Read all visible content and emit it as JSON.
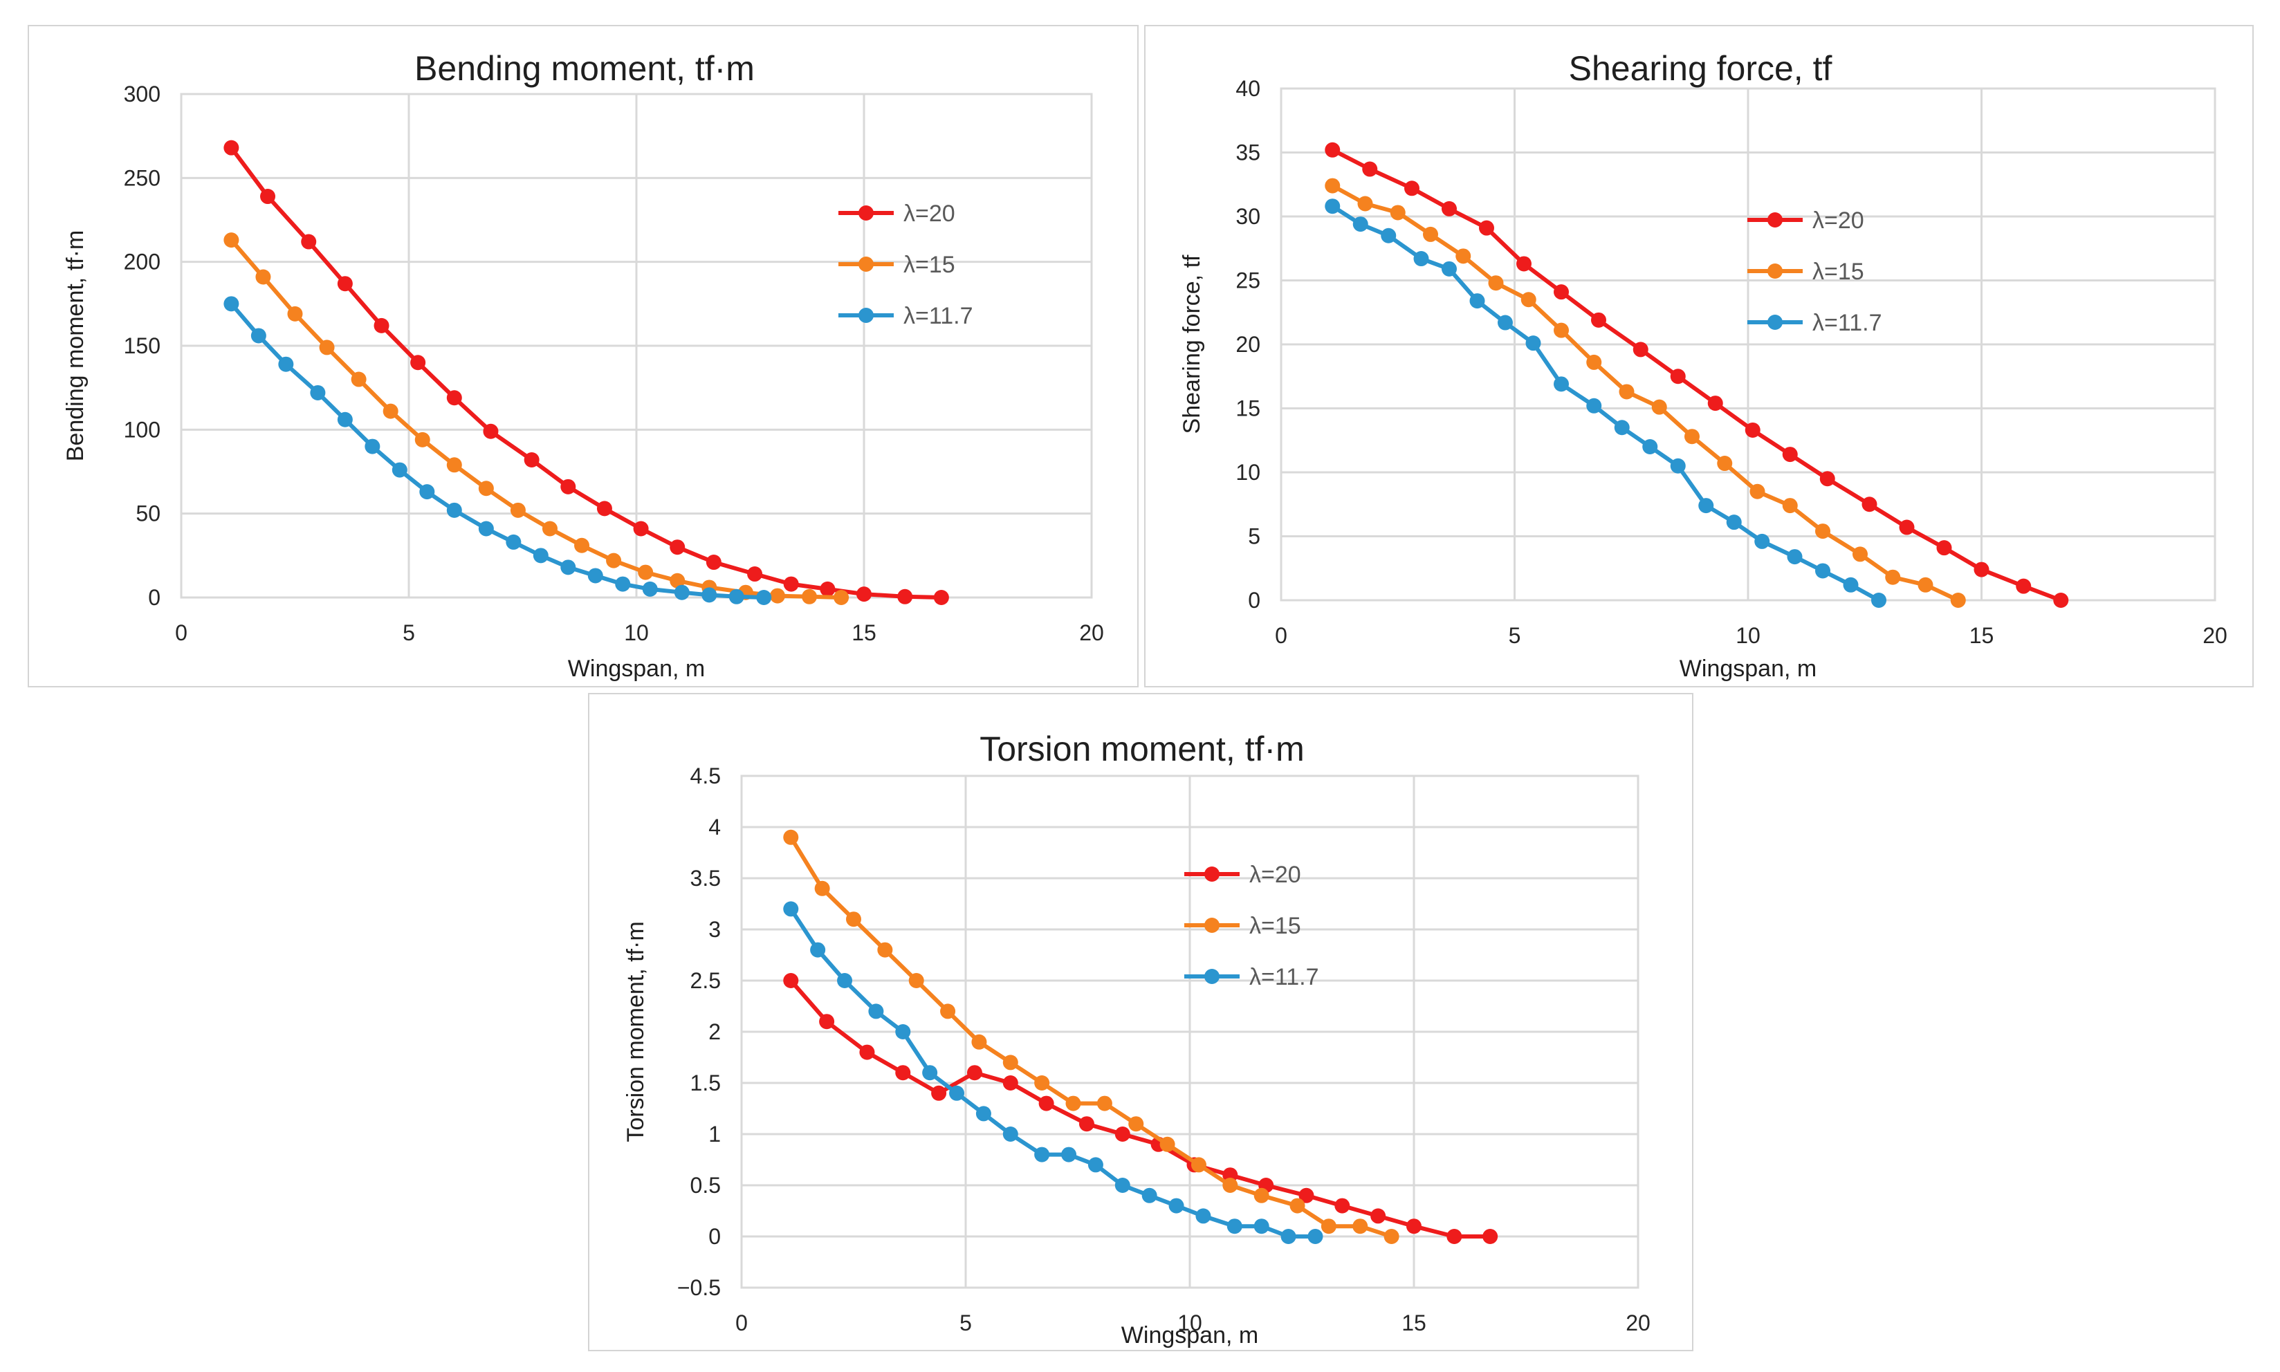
{
  "chart_data": [
    {
      "id": "bending",
      "type": "line",
      "title": "Bending moment, tf·m",
      "xlabel": "Wingspan, m",
      "ylabel": "Bending moment, tf·m",
      "xlim": [
        0,
        20
      ],
      "ylim": [
        0,
        300
      ],
      "xticks": [
        0,
        5,
        10,
        15,
        20
      ],
      "yticks": [
        0,
        50,
        100,
        150,
        200,
        250,
        300
      ],
      "grid": true,
      "legend_position": "center-right",
      "series": [
        {
          "name": "λ=20",
          "color": "#ee1c1c",
          "x": [
            1.1,
            1.9,
            2.8,
            3.6,
            4.4,
            5.2,
            6.0,
            6.8,
            7.7,
            8.5,
            9.3,
            10.1,
            10.9,
            11.7,
            12.6,
            13.4,
            14.2,
            15.0,
            15.9,
            16.7
          ],
          "y": [
            268,
            239,
            212,
            187,
            162,
            140,
            119,
            99,
            82,
            66,
            53,
            41,
            30,
            21,
            14,
            8,
            5,
            2,
            0.5,
            0
          ]
        },
        {
          "name": "λ=15",
          "color": "#f5821f",
          "x": [
            1.1,
            1.8,
            2.5,
            3.2,
            3.9,
            4.6,
            5.3,
            6.0,
            6.7,
            7.4,
            8.1,
            8.8,
            9.5,
            10.2,
            10.9,
            11.6,
            12.4,
            13.1,
            13.8,
            14.5
          ],
          "y": [
            213,
            191,
            169,
            149,
            130,
            111,
            94,
            79,
            65,
            52,
            41,
            31,
            22,
            15,
            10,
            6,
            3,
            1,
            0.5,
            0
          ]
        },
        {
          "name": "λ=11.7",
          "color": "#2b95cf",
          "x": [
            1.1,
            1.7,
            2.3,
            3.0,
            3.6,
            4.2,
            4.8,
            5.4,
            6.0,
            6.7,
            7.3,
            7.9,
            8.5,
            9.1,
            9.7,
            10.3,
            11.0,
            11.6,
            12.2,
            12.8
          ],
          "y": [
            175,
            156,
            139,
            122,
            106,
            90,
            76,
            63,
            52,
            41,
            33,
            25,
            18,
            13,
            8,
            5,
            3,
            1.5,
            0.5,
            0
          ]
        }
      ]
    },
    {
      "id": "shearing",
      "type": "line",
      "title": "Shearing force, tf",
      "xlabel": "Wingspan, m",
      "ylabel": "Shearing force, tf",
      "xlim": [
        0,
        20
      ],
      "ylim": [
        0,
        40
      ],
      "xticks": [
        0,
        5,
        10,
        15,
        20
      ],
      "yticks": [
        0,
        5,
        10,
        15,
        20,
        25,
        30,
        35,
        40
      ],
      "grid": true,
      "legend_position": "center-right",
      "series": [
        {
          "name": "λ=20",
          "color": "#ee1c1c",
          "x": [
            1.1,
            1.9,
            2.8,
            3.6,
            4.4,
            5.2,
            6.0,
            6.8,
            7.7,
            8.5,
            9.3,
            10.1,
            10.9,
            11.7,
            12.6,
            13.4,
            14.2,
            15.0,
            15.9,
            16.7
          ],
          "y": [
            35.2,
            33.7,
            32.2,
            30.6,
            29.1,
            26.3,
            24.1,
            21.9,
            19.6,
            17.5,
            15.4,
            13.3,
            11.4,
            9.5,
            7.5,
            5.7,
            4.1,
            2.4,
            1.1,
            0
          ]
        },
        {
          "name": "λ=15",
          "color": "#f5821f",
          "x": [
            1.1,
            1.8,
            2.5,
            3.2,
            3.9,
            4.6,
            5.3,
            6.0,
            6.7,
            7.4,
            8.1,
            8.8,
            9.5,
            10.2,
            10.9,
            11.6,
            12.4,
            13.1,
            13.8,
            14.5
          ],
          "y": [
            32.4,
            31.0,
            30.3,
            28.6,
            26.9,
            24.8,
            23.5,
            21.1,
            18.6,
            16.3,
            15.1,
            12.8,
            10.7,
            8.5,
            7.4,
            5.4,
            3.6,
            1.8,
            1.2,
            0
          ]
        },
        {
          "name": "λ=11.7",
          "color": "#2b95cf",
          "x": [
            1.1,
            1.7,
            2.3,
            3.0,
            3.6,
            4.2,
            4.8,
            5.4,
            6.0,
            6.7,
            7.3,
            7.9,
            8.5,
            9.1,
            9.7,
            10.3,
            11.0,
            11.6,
            12.2,
            12.8
          ],
          "y": [
            30.8,
            29.4,
            28.5,
            26.7,
            25.9,
            23.4,
            21.7,
            20.1,
            16.9,
            15.2,
            13.5,
            12.0,
            10.5,
            7.4,
            6.1,
            4.6,
            3.4,
            2.3,
            1.2,
            0
          ]
        }
      ]
    },
    {
      "id": "torsion",
      "type": "line",
      "title": "Torsion moment, tf·m",
      "xlabel": "Wingspan, m",
      "ylabel": "Torsion moment, tf·m",
      "xlim": [
        0,
        20
      ],
      "ylim": [
        -0.5,
        4.5
      ],
      "xticks": [
        0,
        5,
        10,
        15,
        20
      ],
      "yticks": [
        -0.5,
        0,
        0.5,
        1,
        1.5,
        2,
        2.5,
        3,
        3.5,
        4,
        4.5
      ],
      "ytick_labels": [
        "−0.5",
        "0",
        "0.5",
        "1",
        "1.5",
        "2",
        "2.5",
        "3",
        "3.5",
        "4",
        "4.5"
      ],
      "grid": true,
      "legend_position": "center-right",
      "series": [
        {
          "name": "λ=20",
          "color": "#ee1c1c",
          "x": [
            1.1,
            1.9,
            2.8,
            3.6,
            4.4,
            5.2,
            6.0,
            6.8,
            7.7,
            8.5,
            9.3,
            10.1,
            10.9,
            11.7,
            12.6,
            13.4,
            14.2,
            15.0,
            15.9,
            16.7
          ],
          "y": [
            2.5,
            2.1,
            1.8,
            1.6,
            1.4,
            1.6,
            1.5,
            1.3,
            1.1,
            1.0,
            0.9,
            0.7,
            0.6,
            0.5,
            0.4,
            0.3,
            0.2,
            0.1,
            0,
            0
          ]
        },
        {
          "name": "λ=15",
          "color": "#f5821f",
          "x": [
            1.1,
            1.8,
            2.5,
            3.2,
            3.9,
            4.6,
            5.3,
            6.0,
            6.7,
            7.4,
            8.1,
            8.8,
            9.5,
            10.2,
            10.9,
            11.6,
            12.4,
            13.1,
            13.8,
            14.5
          ],
          "y": [
            3.9,
            3.4,
            3.1,
            2.8,
            2.5,
            2.2,
            1.9,
            1.7,
            1.5,
            1.3,
            1.3,
            1.1,
            0.9,
            0.7,
            0.5,
            0.4,
            0.3,
            0.1,
            0.1,
            0
          ]
        },
        {
          "name": "λ=11.7",
          "color": "#2b95cf",
          "x": [
            1.1,
            1.7,
            2.3,
            3.0,
            3.6,
            4.2,
            4.8,
            5.4,
            6.0,
            6.7,
            7.3,
            7.9,
            8.5,
            9.1,
            9.7,
            10.3,
            11.0,
            11.6,
            12.2,
            12.8
          ],
          "y": [
            3.2,
            2.8,
            2.5,
            2.2,
            2.0,
            1.6,
            1.4,
            1.2,
            1.0,
            0.8,
            0.8,
            0.7,
            0.5,
            0.4,
            0.3,
            0.2,
            0.1,
            0.1,
            0,
            0
          ]
        }
      ]
    }
  ]
}
